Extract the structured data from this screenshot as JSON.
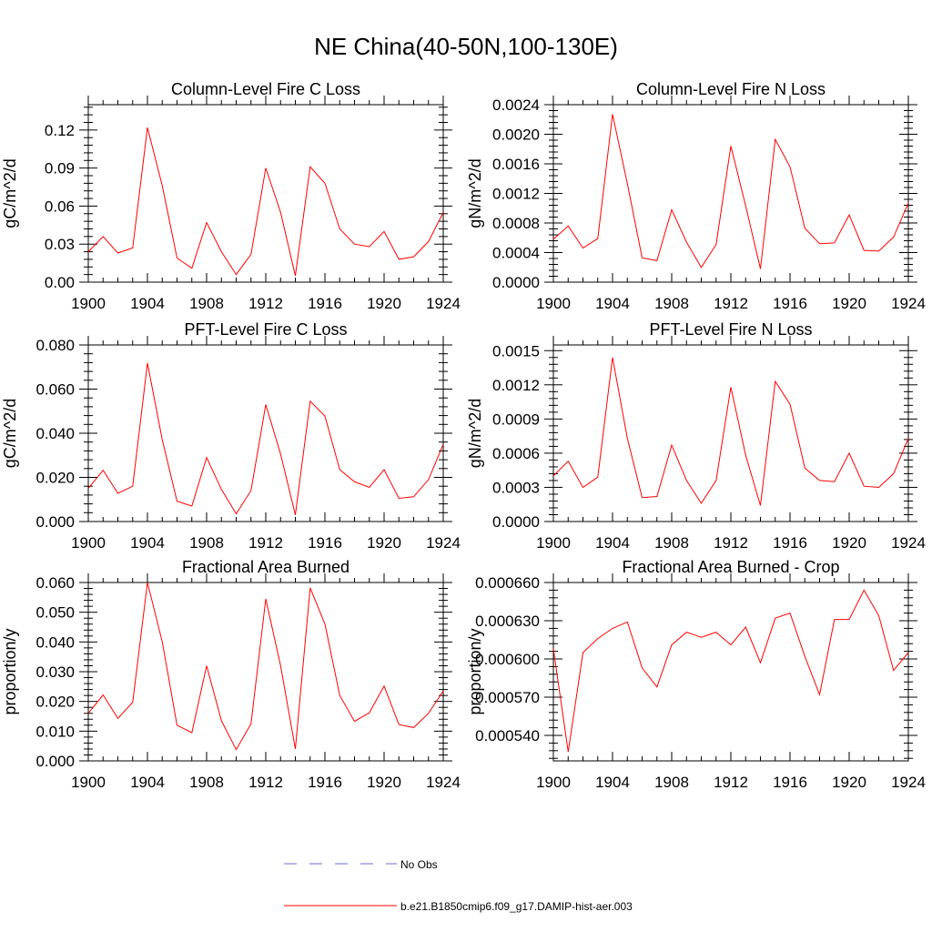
{
  "figure": {
    "title": "NE China(40-50N,100-130E)"
  },
  "legend": {
    "obs_label": "No Obs",
    "model_label": "b.e21.B1850cmip6.f09_g17.DAMIP-hist-aer.003",
    "obs_color": "#6b6bd6",
    "model_color": "#ff0000"
  },
  "chart_data": [
    {
      "type": "line",
      "title": "Column-Level Fire C Loss",
      "ylabel": "gC/m^2/d",
      "xlim": [
        1900,
        1924
      ],
      "ylim": [
        0,
        0.14
      ],
      "xticks": [
        "1900",
        "1904",
        "1908",
        "1912",
        "1916",
        "1920",
        "1924"
      ],
      "yticks": [
        "0.00",
        "0.03",
        "0.06",
        "0.09",
        "0.12"
      ],
      "ytick_values": [
        0,
        0.03,
        0.06,
        0.09,
        0.12
      ],
      "x": [
        1900,
        1901,
        1902,
        1903,
        1904,
        1905,
        1906,
        1907,
        1908,
        1909,
        1910,
        1911,
        1912,
        1913,
        1914,
        1915,
        1916,
        1917,
        1918,
        1919,
        1920,
        1921,
        1922,
        1923,
        1924
      ],
      "series": [
        {
          "values": [
            0.024,
            0.036,
            0.023,
            0.027,
            0.122,
            0.076,
            0.019,
            0.011,
            0.047,
            0.024,
            0.006,
            0.022,
            0.09,
            0.055,
            0.005,
            0.091,
            0.078,
            0.042,
            0.03,
            0.028,
            0.04,
            0.018,
            0.02,
            0.032,
            0.055
          ]
        }
      ]
    },
    {
      "type": "line",
      "title": "Column-Level Fire N Loss",
      "ylabel": "gN/m^2/d",
      "xlim": [
        1900,
        1924
      ],
      "ylim": [
        0,
        0.0024
      ],
      "xticks": [
        "1900",
        "1904",
        "1908",
        "1912",
        "1916",
        "1920",
        "1924"
      ],
      "yticks": [
        "0.0000",
        "0.0004",
        "0.0008",
        "0.0012",
        "0.0016",
        "0.0020",
        "0.0024"
      ],
      "ytick_values": [
        0,
        0.0004,
        0.0008,
        0.0012,
        0.0016,
        0.002,
        0.0024
      ],
      "x": [
        1900,
        1901,
        1902,
        1903,
        1904,
        1905,
        1906,
        1907,
        1908,
        1909,
        1910,
        1911,
        1912,
        1913,
        1914,
        1915,
        1916,
        1917,
        1918,
        1919,
        1920,
        1921,
        1922,
        1923,
        1924
      ],
      "series": [
        {
          "values": [
            0.00058,
            0.00076,
            0.00046,
            0.00059,
            0.00227,
            0.00133,
            0.00033,
            0.00029,
            0.00098,
            0.00054,
            0.0002,
            0.00051,
            0.00184,
            0.00103,
            0.00018,
            0.00193,
            0.00156,
            0.00073,
            0.00052,
            0.00053,
            0.00091,
            0.00043,
            0.00042,
            0.00061,
            0.00107
          ]
        }
      ]
    },
    {
      "type": "line",
      "title": "PFT-Level Fire C Loss",
      "ylabel": "gC/m^2/d",
      "xlim": [
        1900,
        1924
      ],
      "ylim": [
        0,
        0.08
      ],
      "xticks": [
        "1900",
        "1904",
        "1908",
        "1912",
        "1916",
        "1920",
        "1924"
      ],
      "yticks": [
        "0.000",
        "0.020",
        "0.040",
        "0.060",
        "0.080"
      ],
      "ytick_values": [
        0,
        0.02,
        0.04,
        0.06,
        0.08
      ],
      "x": [
        1900,
        1901,
        1902,
        1903,
        1904,
        1905,
        1906,
        1907,
        1908,
        1909,
        1910,
        1911,
        1912,
        1913,
        1914,
        1915,
        1916,
        1917,
        1918,
        1919,
        1920,
        1921,
        1922,
        1923,
        1924
      ],
      "series": [
        {
          "values": [
            0.015,
            0.0232,
            0.0128,
            0.016,
            0.0718,
            0.037,
            0.0092,
            0.007,
            0.029,
            0.0145,
            0.0035,
            0.014,
            0.053,
            0.0305,
            0.003,
            0.0545,
            0.0478,
            0.0235,
            0.018,
            0.0155,
            0.0235,
            0.0105,
            0.0112,
            0.019,
            0.035
          ]
        }
      ]
    },
    {
      "type": "line",
      "title": "PFT-Level Fire N Loss",
      "ylabel": "gN/m^2/d",
      "xlim": [
        1900,
        1924
      ],
      "ylim": [
        0,
        0.00155
      ],
      "xticks": [
        "1900",
        "1904",
        "1908",
        "1912",
        "1916",
        "1920",
        "1924"
      ],
      "yticks": [
        "0.0000",
        "0.0003",
        "0.0006",
        "0.0009",
        "0.0012",
        "0.0015"
      ],
      "ytick_values": [
        0,
        0.0003,
        0.0006,
        0.0009,
        0.0012,
        0.0015
      ],
      "x": [
        1900,
        1901,
        1902,
        1903,
        1904,
        1905,
        1906,
        1907,
        1908,
        1909,
        1910,
        1911,
        1912,
        1913,
        1914,
        1915,
        1916,
        1917,
        1918,
        1919,
        1920,
        1921,
        1922,
        1923,
        1924
      ],
      "series": [
        {
          "values": [
            0.0004,
            0.00053,
            0.0003,
            0.00039,
            0.00144,
            0.00073,
            0.00021,
            0.00022,
            0.00067,
            0.00036,
            0.00016,
            0.00036,
            0.00118,
            0.00058,
            0.00014,
            0.00123,
            0.00103,
            0.00047,
            0.00036,
            0.00035,
            0.0006,
            0.00031,
            0.0003,
            0.00042,
            0.00073
          ]
        }
      ]
    },
    {
      "type": "line",
      "title": "Fractional Area Burned",
      "ylabel": "proportion/y",
      "xlim": [
        1900,
        1924
      ],
      "ylim": [
        0,
        0.06
      ],
      "xticks": [
        "1900",
        "1904",
        "1908",
        "1912",
        "1916",
        "1920",
        "1924"
      ],
      "yticks": [
        "0.000",
        "0.010",
        "0.020",
        "0.030",
        "0.040",
        "0.050",
        "0.060"
      ],
      "ytick_values": [
        0,
        0.01,
        0.02,
        0.03,
        0.04,
        0.05,
        0.06
      ],
      "x": [
        1900,
        1901,
        1902,
        1903,
        1904,
        1905,
        1906,
        1907,
        1908,
        1909,
        1910,
        1911,
        1912,
        1913,
        1914,
        1915,
        1916,
        1917,
        1918,
        1919,
        1920,
        1921,
        1922,
        1923,
        1924
      ],
      "series": [
        {
          "values": [
            0.016,
            0.0222,
            0.0143,
            0.0197,
            0.06,
            0.04,
            0.012,
            0.0095,
            0.032,
            0.0135,
            0.0038,
            0.0125,
            0.0545,
            0.032,
            0.004,
            0.0582,
            0.046,
            0.022,
            0.0133,
            0.0162,
            0.0252,
            0.0122,
            0.0112,
            0.016,
            0.0235
          ]
        }
      ]
    },
    {
      "type": "line",
      "title": "Fractional Area Burned - Crop",
      "ylabel": "proportion/y",
      "xlim": [
        1900,
        1924
      ],
      "ylim": [
        0.00052,
        0.00066
      ],
      "xticks": [
        "1900",
        "1904",
        "1908",
        "1912",
        "1916",
        "1920",
        "1924"
      ],
      "yticks": [
        "0.000540",
        "0.000570",
        "0.000600",
        "0.000630",
        "0.000660"
      ],
      "ytick_values": [
        0.00054,
        0.00057,
        0.0006,
        0.00063,
        0.00066
      ],
      "x": [
        1900,
        1901,
        1902,
        1903,
        1904,
        1905,
        1906,
        1907,
        1908,
        1909,
        1910,
        1911,
        1912,
        1913,
        1914,
        1915,
        1916,
        1917,
        1918,
        1919,
        1920,
        1921,
        1922,
        1923,
        1924
      ],
      "series": [
        {
          "values": [
            0.000608,
            0.000527,
            0.000605,
            0.000616,
            0.000624,
            0.000629,
            0.000593,
            0.000578,
            0.000611,
            0.000621,
            0.000617,
            0.000621,
            0.000611,
            0.000625,
            0.000597,
            0.000632,
            0.000636,
            0.000602,
            0.000572,
            0.000631,
            0.000631,
            0.000654,
            0.000634,
            0.000591,
            0.000605
          ]
        }
      ]
    }
  ]
}
